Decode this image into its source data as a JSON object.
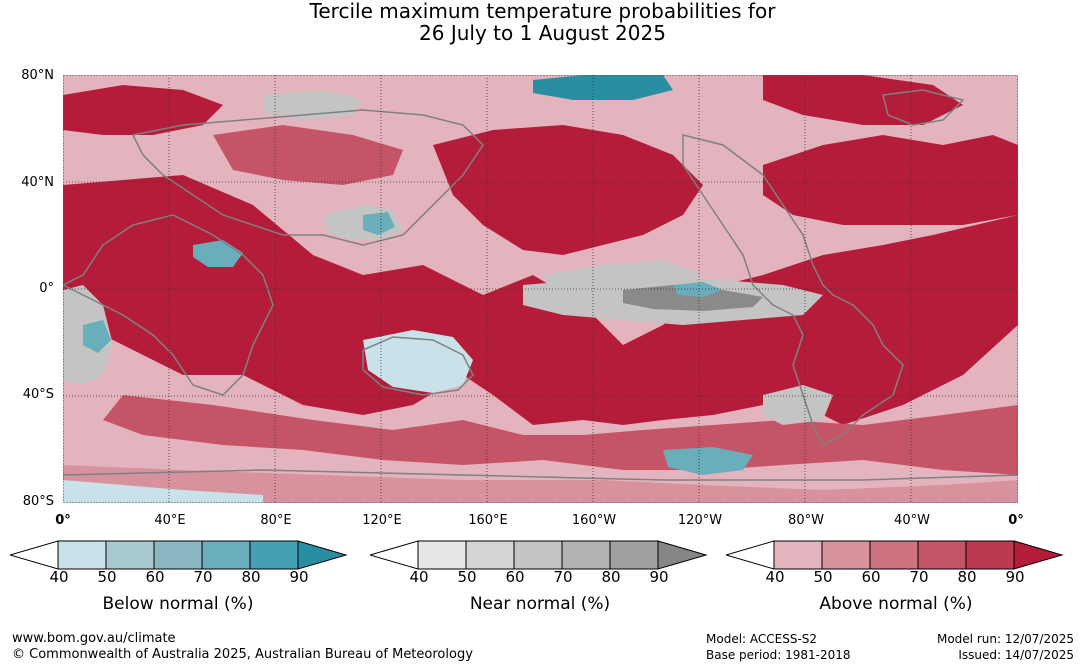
{
  "title": {
    "line1": "Tercile maximum temperature probabilities for",
    "line2": "26 July to 1 August 2025"
  },
  "axes": {
    "lat_labels": [
      "80°N",
      "40°N",
      "0°",
      "40°S",
      "80°S"
    ],
    "lon_labels": [
      "0°",
      "40°E",
      "80°E",
      "120°E",
      "160°E",
      "160°W",
      "120°W",
      "80°W",
      "40°W",
      "0°"
    ]
  },
  "colorbars": [
    {
      "name": "below",
      "title": "Below normal (%)",
      "ticks": [
        "40",
        "50",
        "60",
        "70",
        "80",
        "90"
      ],
      "colors": [
        "#ffffff",
        "#c9e1e8",
        "#a9c9d0",
        "#8bb7c3",
        "#6aadbb",
        "#44a1b3",
        "#2a8ea3"
      ]
    },
    {
      "name": "near",
      "title": "Near normal (%)",
      "ticks": [
        "40",
        "50",
        "60",
        "70",
        "80",
        "90"
      ],
      "colors": [
        "#ffffff",
        "#e6e6e6",
        "#d4d4d4",
        "#c4c4c4",
        "#b2b2b2",
        "#a0a0a0",
        "#868686"
      ]
    },
    {
      "name": "above",
      "title": "Above normal (%)",
      "ticks": [
        "40",
        "50",
        "60",
        "70",
        "80",
        "90"
      ],
      "colors": [
        "#ffffff",
        "#e3b4bd",
        "#d8929e",
        "#cd7280",
        "#c55566",
        "#bb3a4f",
        "#b51c3a"
      ]
    }
  ],
  "footer": {
    "website": "www.bom.gov.au/climate",
    "copyright": "© Commonwealth of Australia 2025, Australian Bureau of Meteorology",
    "model": "Model: ACCESS-S2",
    "base_period": "Base period: 1981-2018",
    "model_run": "Model run: 12/07/2025",
    "issued": "Issued: 14/07/2025"
  },
  "map_colors": {
    "above_strong": "#b51c3a",
    "above_mid": "#c55566",
    "above_light": "#d8929e",
    "above_pale": "#e3b4bd",
    "near": "#c4c4c4",
    "near_dark": "#8a8a8a",
    "below": "#6aadbb",
    "below_strong": "#2a8ea3",
    "below_pale": "#c9e1e8",
    "coast": "#808080"
  }
}
